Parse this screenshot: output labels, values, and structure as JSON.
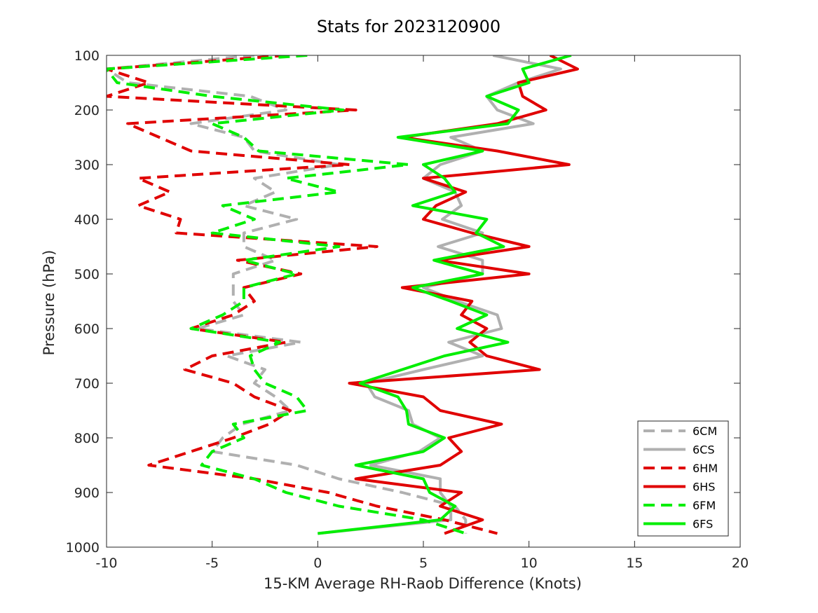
{
  "chart_data": {
    "type": "line",
    "title": "Stats for 2023120900",
    "xlabel": "15-KM Average RH-Raob Difference (Knots)",
    "ylabel": "Pressure (hPa)",
    "xlim": [
      -10,
      20
    ],
    "ylim": [
      100,
      1000
    ],
    "y_reversed": true,
    "grid": false,
    "legend_position": "bottom-right",
    "xticks": [
      -10,
      -5,
      0,
      5,
      10,
      15,
      20
    ],
    "yticks": [
      100,
      200,
      300,
      400,
      500,
      600,
      700,
      800,
      900,
      1000
    ],
    "pressure_levels": [
      100,
      125,
      150,
      175,
      200,
      225,
      250,
      275,
      300,
      325,
      350,
      375,
      400,
      425,
      450,
      475,
      500,
      525,
      550,
      575,
      600,
      625,
      650,
      675,
      700,
      725,
      750,
      775,
      800,
      825,
      850,
      875,
      900,
      925,
      950,
      975
    ],
    "series": [
      {
        "name": "6CM",
        "color": "#b0b0b0",
        "style": "dashed",
        "values": [
          -3,
          -10,
          -9,
          -3.2,
          -1.5,
          -6,
          -3.5,
          -3,
          1,
          -3,
          -2,
          -3.5,
          -1,
          -3.5,
          -3.5,
          -2,
          -4,
          -4,
          -4,
          -3.5,
          -5.7,
          -0.8,
          -4.3,
          -2.5,
          -3,
          -2,
          -1.3,
          -3.6,
          -4.5,
          -5,
          -1,
          1,
          4,
          6.5,
          7,
          7
        ]
      },
      {
        "name": "6CS",
        "color": "#b0b0b0",
        "style": "solid",
        "values": [
          8.3,
          11.5,
          9.5,
          8,
          8.5,
          10.2,
          6.3,
          7.8,
          5.8,
          5,
          6.5,
          6.8,
          5.9,
          7.8,
          5.7,
          7.8,
          7.8,
          5,
          6.6,
          8.5,
          8.7,
          6.2,
          7.8,
          5,
          2.3,
          2.7,
          4.3,
          4.5,
          5.8,
          4.8,
          2.5,
          5.8,
          5.8,
          6.3,
          6.3,
          0
        ]
      },
      {
        "name": "6HM",
        "color": "#e00000",
        "style": "dashed",
        "values": [
          -1.5,
          -10,
          -8,
          -10,
          1.8,
          -9,
          -7.5,
          -6,
          1.5,
          -8.5,
          -7,
          -8.5,
          -6.5,
          -6.7,
          2.8,
          -3.8,
          -0.8,
          -3.5,
          -3,
          -4,
          -6,
          -1.5,
          -5,
          -6.3,
          -4,
          -3,
          -1.3,
          -2.3,
          -4,
          -6,
          -8,
          -3,
          0.5,
          2.8,
          6,
          8.5
        ]
      },
      {
        "name": "6HS",
        "color": "#e00000",
        "style": "solid",
        "values": [
          11,
          12.3,
          9.5,
          9.7,
          10.8,
          8.5,
          4,
          8.5,
          11.9,
          5,
          7,
          5.6,
          5,
          7.3,
          10,
          5.7,
          10,
          4,
          7.3,
          6.8,
          8,
          7.2,
          8,
          10.5,
          1.5,
          5,
          5.8,
          8.7,
          6.2,
          6.8,
          5.8,
          1.8,
          6.8,
          5.8,
          7.8,
          6
        ]
      },
      {
        "name": "6FM",
        "color": "#00ee00",
        "style": "dashed",
        "values": [
          -0.5,
          -10,
          -9.5,
          -5,
          1.2,
          -5,
          -3.5,
          -2.8,
          4.3,
          -1.5,
          1,
          -4.5,
          -3,
          -5,
          1,
          -3.5,
          -1,
          -3.5,
          -3.5,
          -4.5,
          -6,
          -1.8,
          -3.2,
          -3,
          -2.5,
          -1,
          -0.5,
          -4,
          -3.5,
          -5,
          -5.5,
          -3,
          -1.5,
          1,
          5,
          7
        ]
      },
      {
        "name": "6FS",
        "color": "#00ee00",
        "style": "solid",
        "values": [
          12,
          9.7,
          10,
          8,
          9.5,
          9,
          3.8,
          7.8,
          5,
          6,
          6.5,
          4.5,
          8,
          7.5,
          8.8,
          5.5,
          7.8,
          4.5,
          6.3,
          8,
          6.6,
          9,
          6,
          4,
          2,
          3.8,
          4.2,
          4.3,
          6,
          5,
          1.8,
          5,
          5.3,
          6.5,
          5.8,
          0
        ]
      }
    ]
  }
}
